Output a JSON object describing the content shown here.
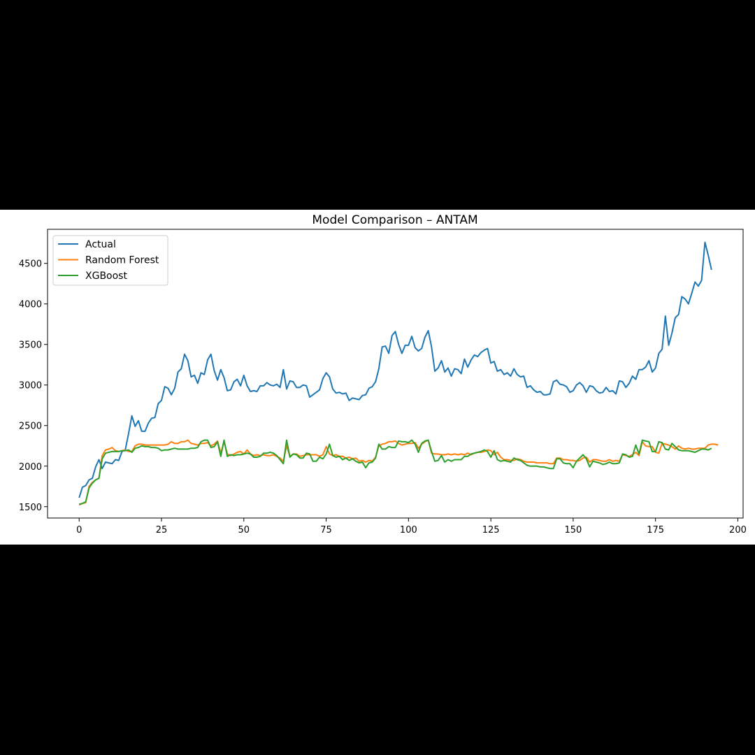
{
  "chart_data": {
    "type": "line",
    "title": "Model Comparison – ANTAM",
    "xlabel": "",
    "ylabel": "",
    "xlim": [
      -9.6,
      201.6
    ],
    "ylim": [
      1360,
      4920
    ],
    "xticks": [
      0,
      25,
      50,
      75,
      100,
      125,
      150,
      175,
      200
    ],
    "yticks": [
      1500,
      2000,
      2500,
      3000,
      3500,
      4000,
      4500
    ],
    "grid": false,
    "legend": "top-left",
    "series": [
      {
        "name": "Actual",
        "color": "#1f77b4",
        "values": [
          1610,
          1740,
          1760,
          1830,
          1850,
          1990,
          2080,
          1970,
          2050,
          2040,
          2030,
          2080,
          2070,
          2180,
          2200,
          2400,
          2620,
          2490,
          2560,
          2430,
          2430,
          2530,
          2590,
          2600,
          2770,
          2810,
          2980,
          2960,
          2880,
          2960,
          3160,
          3200,
          3380,
          3300,
          3100,
          3120,
          3020,
          3150,
          3130,
          3310,
          3380,
          3180,
          3060,
          3190,
          3090,
          2930,
          2940,
          3040,
          3070,
          2990,
          3120,
          2990,
          2920,
          2930,
          2920,
          2990,
          2990,
          3030,
          3000,
          2990,
          3010,
          2970,
          3190,
          2950,
          3050,
          3040,
          2970,
          2970,
          3000,
          2990,
          2850,
          2880,
          2910,
          2940,
          3080,
          3150,
          3100,
          2950,
          2900,
          2910,
          2890,
          2900,
          2810,
          2840,
          2830,
          2820,
          2870,
          2880,
          2960,
          2980,
          3040,
          3200,
          3470,
          3480,
          3390,
          3610,
          3660,
          3500,
          3390,
          3490,
          3490,
          3600,
          3460,
          3420,
          3450,
          3590,
          3670,
          3470,
          3170,
          3210,
          3300,
          3160,
          3210,
          3110,
          3200,
          3190,
          3140,
          3320,
          3220,
          3310,
          3370,
          3350,
          3400,
          3430,
          3450,
          3270,
          3290,
          3170,
          3190,
          3130,
          3150,
          3110,
          3200,
          3130,
          3100,
          3110,
          2970,
          2990,
          2940,
          2910,
          2920,
          2880,
          2880,
          2890,
          3040,
          3060,
          3010,
          3000,
          2980,
          2910,
          2930,
          3000,
          3030,
          2990,
          2910,
          2990,
          2980,
          2930,
          2900,
          2910,
          2970,
          2920,
          2930,
          2890,
          3050,
          3040,
          2970,
          3020,
          3110,
          3070,
          3190,
          3190,
          3220,
          3300,
          3160,
          3210,
          3390,
          3440,
          3850,
          3490,
          3640,
          3830,
          3870,
          4090,
          4060,
          4000,
          4130,
          4270,
          4220,
          4290,
          4760,
          4600,
          4420
        ]
      },
      {
        "name": "Random Forest",
        "color": "#ff7f0e",
        "values": [
          1520,
          1540,
          1550,
          1750,
          1800,
          1830,
          1850,
          2130,
          2200,
          2210,
          2230,
          2190,
          2180,
          2190,
          2200,
          2180,
          2180,
          2250,
          2270,
          2270,
          2260,
          2260,
          2260,
          2260,
          2260,
          2260,
          2260,
          2270,
          2300,
          2280,
          2280,
          2300,
          2300,
          2320,
          2280,
          2270,
          2260,
          2280,
          2280,
          2290,
          2250,
          2270,
          2310,
          2160,
          2300,
          2150,
          2130,
          2150,
          2170,
          2180,
          2150,
          2200,
          2150,
          2130,
          2140,
          2130,
          2140,
          2130,
          2130,
          2140,
          2120,
          2100,
          2060,
          2250,
          2120,
          2150,
          2150,
          2120,
          2130,
          2140,
          2140,
          2140,
          2140,
          2120,
          2140,
          2240,
          2150,
          2130,
          2140,
          2120,
          2120,
          2100,
          2110,
          2090,
          2100,
          2060,
          2070,
          2050,
          2070,
          2060,
          2110,
          2250,
          2270,
          2280,
          2300,
          2300,
          2310,
          2280,
          2260,
          2270,
          2280,
          2280,
          2290,
          2220,
          2270,
          2300,
          2320,
          2160,
          2150,
          2150,
          2140,
          2140,
          2150,
          2140,
          2150,
          2140,
          2150,
          2140,
          2160,
          2140,
          2160,
          2170,
          2170,
          2180,
          2200,
          2190,
          2140,
          2170,
          2110,
          2080,
          2080,
          2070,
          2070,
          2090,
          2080,
          2060,
          2050,
          2050,
          2050,
          2040,
          2040,
          2040,
          2040,
          2030,
          2030,
          2100,
          2100,
          2080,
          2080,
          2070,
          2070,
          2060,
          2070,
          2100,
          2110,
          2050,
          2080,
          2080,
          2070,
          2060,
          2060,
          2080,
          2060,
          2070,
          2060,
          2140,
          2130,
          2120,
          2140,
          2170,
          2130,
          2300,
          2250,
          2240,
          2240,
          2170,
          2160,
          2280,
          2270,
          2260,
          2240,
          2210,
          2250,
          2220,
          2210,
          2220,
          2210,
          2210,
          2220,
          2220,
          2220,
          2260,
          2270,
          2270,
          2260
        ]
      },
      {
        "name": "XGBoost",
        "color": "#2ca02c",
        "values": [
          1530,
          1540,
          1560,
          1730,
          1790,
          1830,
          1850,
          2090,
          2160,
          2170,
          2180,
          2180,
          2180,
          2190,
          2190,
          2200,
          2170,
          2220,
          2230,
          2250,
          2240,
          2240,
          2230,
          2230,
          2220,
          2190,
          2200,
          2200,
          2210,
          2220,
          2210,
          2210,
          2210,
          2210,
          2220,
          2220,
          2230,
          2300,
          2320,
          2320,
          2230,
          2240,
          2300,
          2120,
          2320,
          2120,
          2140,
          2130,
          2140,
          2140,
          2150,
          2160,
          2150,
          2110,
          2110,
          2120,
          2160,
          2160,
          2170,
          2160,
          2130,
          2080,
          2030,
          2320,
          2110,
          2150,
          2140,
          2100,
          2100,
          2160,
          2150,
          2060,
          2060,
          2110,
          2090,
          2150,
          2270,
          2130,
          2110,
          2120,
          2080,
          2100,
          2070,
          2090,
          2060,
          2040,
          2050,
          1980,
          2040,
          2050,
          2100,
          2270,
          2210,
          2210,
          2240,
          2230,
          2230,
          2310,
          2300,
          2300,
          2290,
          2320,
          2270,
          2170,
          2280,
          2310,
          2320,
          2180,
          2060,
          2070,
          2130,
          2050,
          2080,
          2060,
          2080,
          2080,
          2080,
          2120,
          2120,
          2150,
          2160,
          2170,
          2180,
          2200,
          2180,
          2110,
          2190,
          2080,
          2060,
          2070,
          2060,
          2050,
          2100,
          2080,
          2070,
          2040,
          2010,
          2000,
          2000,
          2000,
          1990,
          1990,
          1980,
          1970,
          1970,
          2090,
          2090,
          2040,
          2030,
          2030,
          1980,
          2060,
          2100,
          2140,
          2090,
          1990,
          2060,
          2050,
          2040,
          2020,
          2030,
          2050,
          2030,
          2030,
          2040,
          2150,
          2140,
          2110,
          2120,
          2260,
          2150,
          2320,
          2310,
          2300,
          2180,
          2180,
          2300,
          2290,
          2210,
          2200,
          2280,
          2240,
          2200,
          2190,
          2190,
          2190,
          2180,
          2170,
          2190,
          2210,
          2210,
          2200,
          2220
        ]
      }
    ]
  }
}
